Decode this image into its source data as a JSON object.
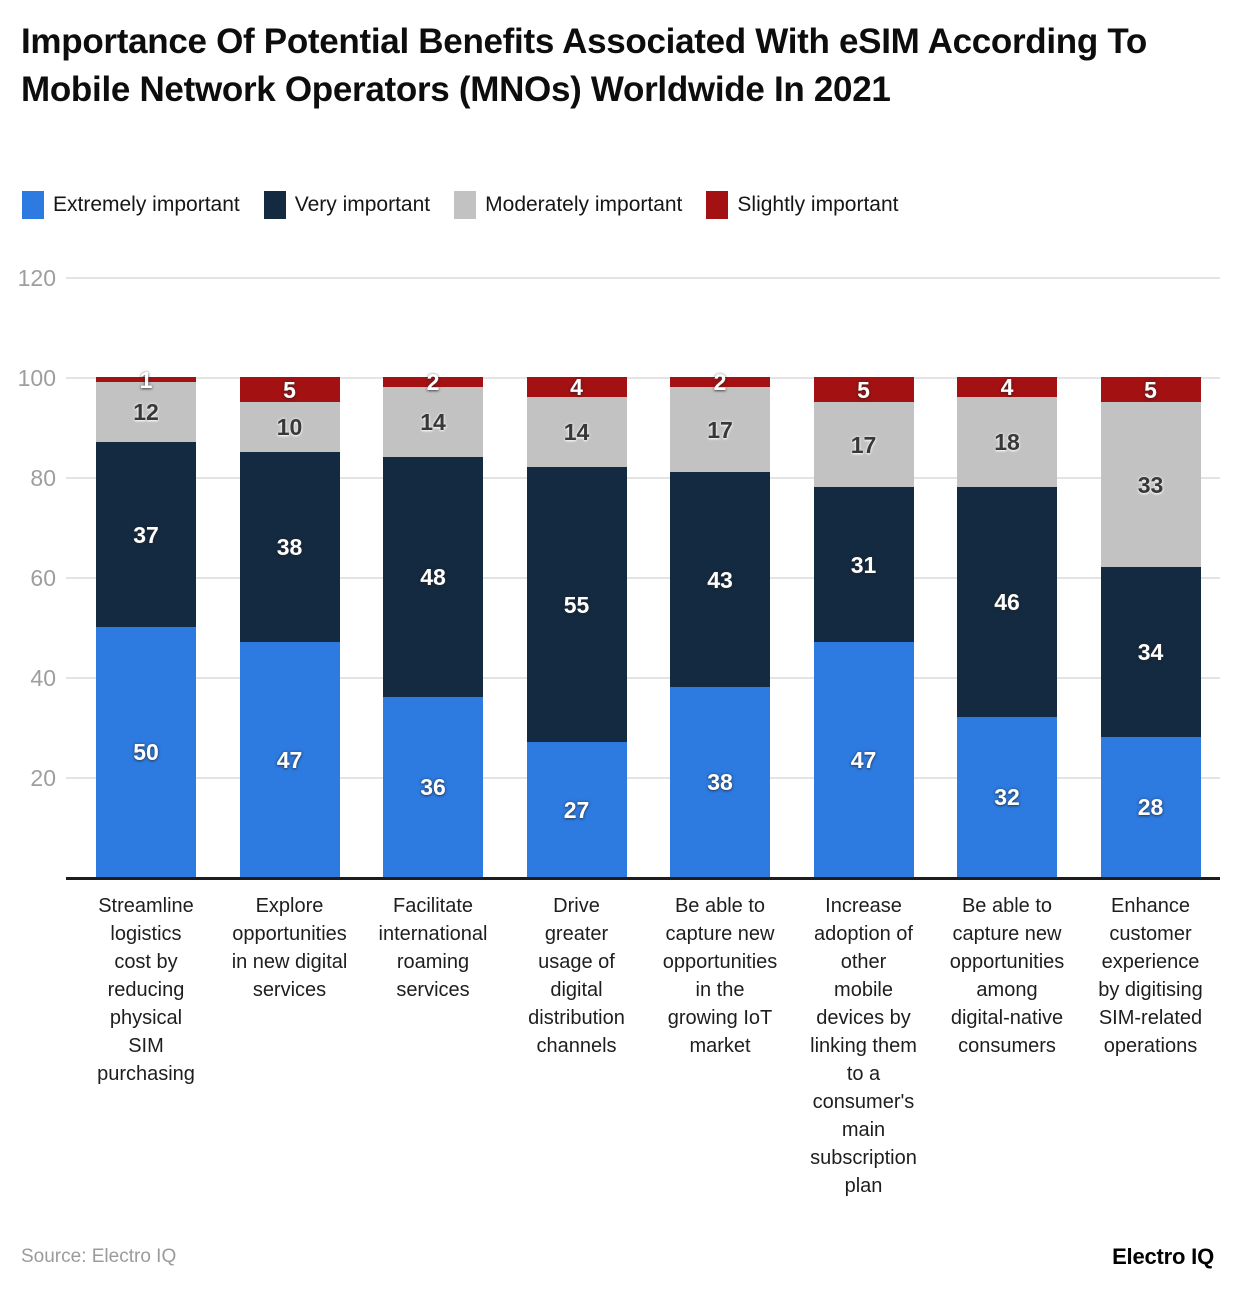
{
  "title": "Importance Of Potential Benefits Associated With eSIM According To Mobile Network Operators (MNOs) Worldwide In 2021",
  "footer": {
    "source": "Source: Electro IQ",
    "brand": "Electro IQ"
  },
  "colors": {
    "blue": "#2d7ae0",
    "navy": "#142a40",
    "gray": "#c2c2c2",
    "red": "#a41113",
    "grid": "#e4e4e4",
    "axis_line": "#1d1d1d",
    "ytick_label": "#9e9e9e",
    "xtick_label": "#1e1e1e",
    "title": "#0d0d0d"
  },
  "chart_data": {
    "type": "bar",
    "subtype": "stacked-vertical",
    "title": "Importance Of Potential Benefits Associated With eSIM According To Mobile Network Operators (MNOs) Worldwide In 2021",
    "xlabel": "",
    "ylabel": "",
    "ylim": [
      0,
      120
    ],
    "yticks": [
      20,
      40,
      60,
      80,
      100,
      120
    ],
    "grid": true,
    "legend_position": "top",
    "categories": [
      "Streamline logistics cost by reducing physical SIM purchasing",
      "Explore opportunities in new digital services",
      "Facilitate international roaming services",
      "Drive greater usage of digital distribution channels",
      "Be able to capture new opportunities in the growing IoT market",
      "Increase adoption of other mobile devices by linking them to a consumer's main subscription plan",
      "Be able to capture new opportunities among digital-native consumers",
      "Enhance customer experience by digitising SIM-related operations"
    ],
    "categories_display": [
      "Streamline\nlogistics\ncost by\nreducing\nphysical\nSIM\npurchasing",
      "Explore\nopportunities\nin new digital\nservices",
      "Facilitate\ninternational\nroaming\nservices",
      "Drive\ngreater\nusage of\ndigital\ndistribution\nchannels",
      "Be able to\ncapture new\nopportunities\nin the\ngrowing IoT\nmarket",
      "Increase\nadoption of\nother\nmobile\ndevices by\nlinking them\nto a\nconsumer's\nmain\nsubscription\nplan",
      "Be able to\ncapture new\nopportunities\namong\ndigital-native\nconsumers",
      "Enhance\ncustomer\nexperience\nby digitising\nSIM-related\noperations"
    ],
    "series": [
      {
        "name": "Extremely important",
        "color": "#2d7ae0",
        "label_style": "on-dark",
        "values": [
          50,
          47,
          36,
          27,
          38,
          47,
          32,
          28
        ]
      },
      {
        "name": "Very important",
        "color": "#142a40",
        "label_style": "on-dark",
        "values": [
          37,
          38,
          48,
          55,
          43,
          31,
          46,
          34
        ]
      },
      {
        "name": "Moderately important",
        "color": "#c2c2c2",
        "label_style": "on-light",
        "values": [
          12,
          10,
          14,
          14,
          17,
          17,
          18,
          33
        ]
      },
      {
        "name": "Slightly important",
        "color": "#a41113",
        "label_style": "on-dark",
        "values": [
          1,
          5,
          2,
          4,
          2,
          5,
          4,
          5
        ]
      }
    ]
  }
}
